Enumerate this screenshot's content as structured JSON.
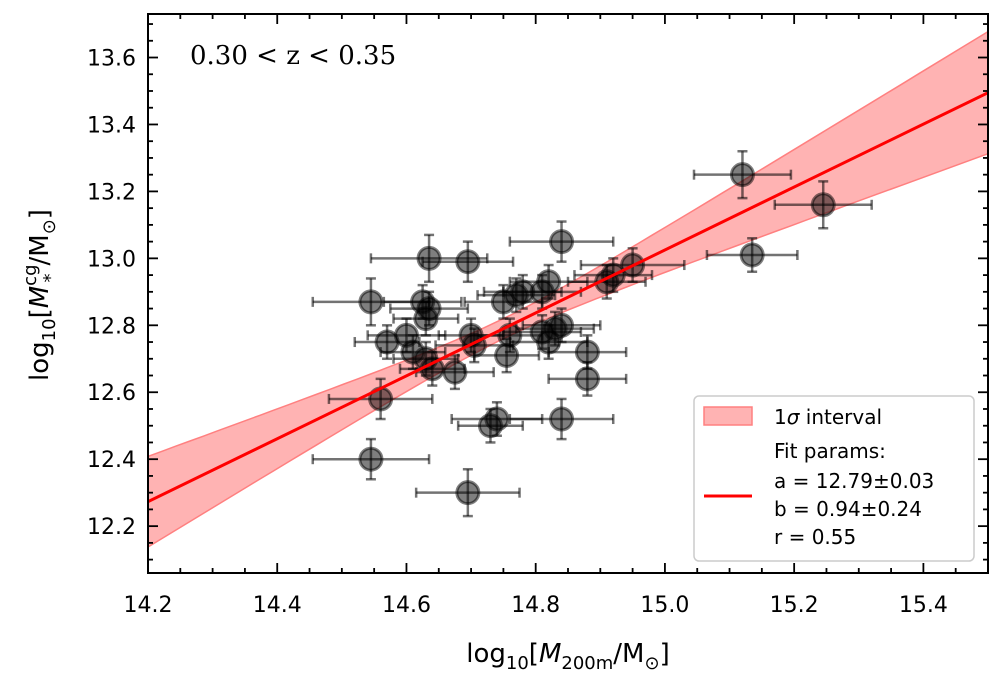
{
  "chart_data": {
    "type": "scatter",
    "title": "0.30 < z < 0.35",
    "xlabel": {
      "prefix": "log",
      "sub": "10",
      "open": "[",
      "var": "M",
      "varsub": "200m",
      "unit": "/M",
      "unitsub": "⊙",
      "close": "]"
    },
    "ylabel": {
      "prefix": "log",
      "sub": "10",
      "open": "[",
      "var": "M",
      "varsup": "cg",
      "varsub": "*",
      "unit": "/M",
      "unitsub": "⊙",
      "close": "]"
    },
    "xlim": [
      14.2,
      15.5
    ],
    "ylim": [
      12.06,
      13.73
    ],
    "xticks": [
      "14.2",
      "14.4",
      "14.6",
      "14.8",
      "15.0",
      "15.2",
      "15.4"
    ],
    "yticks": [
      "12.2",
      "12.4",
      "12.6",
      "12.8",
      "13.0",
      "13.2",
      "13.4",
      "13.6"
    ],
    "fit": {
      "x_pivot": 14.75,
      "a": 12.79,
      "a_err": 0.03,
      "b": 0.94,
      "b_err": 0.24,
      "r": 0.55,
      "color": "#ff0000",
      "band_color": "#ff8080"
    },
    "legend": {
      "band_label_prefix": "1",
      "band_label_sigma": "σ",
      "band_label_suffix": " interval",
      "fit_title": "Fit params:",
      "a_text": "a = 12.79±0.03",
      "b_text": "b = 0.94±0.24",
      "r_text": "r = 0.55",
      "position": "lower-right"
    },
    "points": [
      {
        "x": 14.545,
        "y": 12.87,
        "xerr": 0.09,
        "yerr": 0.07
      },
      {
        "x": 14.57,
        "y": 12.75,
        "xerr": 0.05,
        "yerr": 0.05
      },
      {
        "x": 14.56,
        "y": 12.58,
        "xerr": 0.08,
        "yerr": 0.06
      },
      {
        "x": 14.545,
        "y": 12.4,
        "xerr": 0.09,
        "yerr": 0.06
      },
      {
        "x": 14.6,
        "y": 12.77,
        "xerr": 0.06,
        "yerr": 0.05
      },
      {
        "x": 14.61,
        "y": 12.72,
        "xerr": 0.05,
        "yerr": 0.05
      },
      {
        "x": 14.625,
        "y": 12.87,
        "xerr": 0.06,
        "yerr": 0.05
      },
      {
        "x": 14.63,
        "y": 12.82,
        "xerr": 0.05,
        "yerr": 0.05
      },
      {
        "x": 14.635,
        "y": 12.85,
        "xerr": 0.06,
        "yerr": 0.05
      },
      {
        "x": 14.635,
        "y": 13.0,
        "xerr": 0.09,
        "yerr": 0.07
      },
      {
        "x": 14.63,
        "y": 12.7,
        "xerr": 0.05,
        "yerr": 0.05
      },
      {
        "x": 14.64,
        "y": 12.67,
        "xerr": 0.05,
        "yerr": 0.05
      },
      {
        "x": 14.675,
        "y": 12.66,
        "xerr": 0.06,
        "yerr": 0.05
      },
      {
        "x": 14.695,
        "y": 12.99,
        "xerr": 0.07,
        "yerr": 0.06
      },
      {
        "x": 14.7,
        "y": 12.77,
        "xerr": 0.05,
        "yerr": 0.05
      },
      {
        "x": 14.705,
        "y": 12.74,
        "xerr": 0.06,
        "yerr": 0.05
      },
      {
        "x": 14.695,
        "y": 12.3,
        "xerr": 0.08,
        "yerr": 0.07
      },
      {
        "x": 14.73,
        "y": 12.5,
        "xerr": 0.05,
        "yerr": 0.05
      },
      {
        "x": 14.74,
        "y": 12.52,
        "xerr": 0.07,
        "yerr": 0.05
      },
      {
        "x": 14.75,
        "y": 12.87,
        "xerr": 0.06,
        "yerr": 0.05
      },
      {
        "x": 14.755,
        "y": 12.71,
        "xerr": 0.05,
        "yerr": 0.05
      },
      {
        "x": 14.76,
        "y": 12.77,
        "xerr": 0.05,
        "yerr": 0.05
      },
      {
        "x": 14.77,
        "y": 12.89,
        "xerr": 0.06,
        "yerr": 0.05
      },
      {
        "x": 14.78,
        "y": 12.9,
        "xerr": 0.06,
        "yerr": 0.05
      },
      {
        "x": 14.81,
        "y": 12.9,
        "xerr": 0.06,
        "yerr": 0.05
      },
      {
        "x": 14.82,
        "y": 12.93,
        "xerr": 0.06,
        "yerr": 0.05
      },
      {
        "x": 14.81,
        "y": 12.78,
        "xerr": 0.06,
        "yerr": 0.05
      },
      {
        "x": 14.82,
        "y": 12.75,
        "xerr": 0.06,
        "yerr": 0.05
      },
      {
        "x": 14.83,
        "y": 12.79,
        "xerr": 0.06,
        "yerr": 0.05
      },
      {
        "x": 14.84,
        "y": 12.8,
        "xerr": 0.06,
        "yerr": 0.05
      },
      {
        "x": 14.84,
        "y": 13.05,
        "xerr": 0.08,
        "yerr": 0.06
      },
      {
        "x": 14.84,
        "y": 12.52,
        "xerr": 0.08,
        "yerr": 0.06
      },
      {
        "x": 14.88,
        "y": 12.72,
        "xerr": 0.06,
        "yerr": 0.05
      },
      {
        "x": 14.88,
        "y": 12.64,
        "xerr": 0.06,
        "yerr": 0.05
      },
      {
        "x": 14.91,
        "y": 12.93,
        "xerr": 0.06,
        "yerr": 0.05
      },
      {
        "x": 14.92,
        "y": 12.95,
        "xerr": 0.06,
        "yerr": 0.05
      },
      {
        "x": 14.95,
        "y": 12.98,
        "xerr": 0.08,
        "yerr": 0.05
      },
      {
        "x": 15.12,
        "y": 13.25,
        "xerr": 0.075,
        "yerr": 0.07
      },
      {
        "x": 15.135,
        "y": 13.01,
        "xerr": 0.07,
        "yerr": 0.05
      },
      {
        "x": 15.245,
        "y": 13.16,
        "xerr": 0.075,
        "yerr": 0.07
      }
    ]
  }
}
